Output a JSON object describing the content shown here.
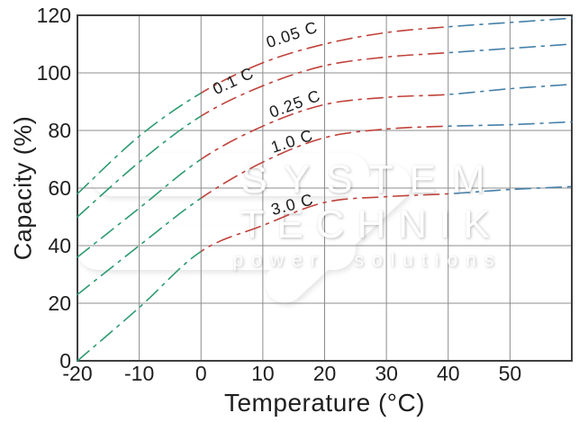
{
  "watermark": {
    "brand_line1": "SYSTEM",
    "brand_line2": "TECHNIK",
    "tagline": "power solutions"
  },
  "chart_data": {
    "type": "line",
    "title": "",
    "xlabel": "Temperature (°C)",
    "ylabel": "Capacity (%)",
    "xlim": [
      -20,
      60
    ],
    "ylim": [
      0,
      120
    ],
    "xticks": [
      -20,
      -10,
      0,
      10,
      20,
      30,
      40,
      50
    ],
    "yticks": [
      0,
      20,
      40,
      60,
      80,
      100,
      120
    ],
    "grid": true,
    "line_style": "dash-dot",
    "legend_position": "inline-curve-labels",
    "grid_color": "#8c8c8c",
    "border_color": "#3f3f3f",
    "text_color": "#1f1f1f",
    "color_bands": [
      {
        "name": "cold-segment",
        "t_min": -20,
        "t_max": 0,
        "color": "#2d9b6f"
      },
      {
        "name": "mid-segment",
        "t_min": 0,
        "t_max": 40,
        "color": "#c0413a"
      },
      {
        "name": "warm-segment",
        "t_min": 40,
        "t_max": 60,
        "color": "#4580a8"
      }
    ],
    "x": [
      -20,
      -10,
      0,
      10,
      20,
      30,
      40,
      50,
      60
    ],
    "series": [
      {
        "name": "0.05 C",
        "label": {
          "text": "0.05 C",
          "t": 15,
          "c": 111.5,
          "angle": -18
        },
        "values": [
          58,
          78,
          93,
          103.5,
          110,
          114,
          116,
          117.5,
          119
        ]
      },
      {
        "name": "0.1 C",
        "label": {
          "text": "0.1 C",
          "t": 5.6,
          "c": 95.5,
          "angle": -25
        },
        "values": [
          50,
          69,
          85,
          95.5,
          102.5,
          105.5,
          107,
          108.5,
          110
        ]
      },
      {
        "name": "0.25 C",
        "label": {
          "text": "0.25 C",
          "t": 15.5,
          "c": 87.5,
          "angle": -20
        },
        "values": [
          36,
          53,
          70,
          81.5,
          89,
          91.5,
          92.5,
          94.5,
          96
        ]
      },
      {
        "name": "1.0 C",
        "label": {
          "text": "1.0 C",
          "t": 15,
          "c": 74.5,
          "angle": -18
        },
        "values": [
          23,
          40,
          56.5,
          69,
          77.5,
          80.5,
          81.5,
          82,
          83
        ]
      },
      {
        "name": "3.0 C",
        "label": {
          "text": "3.0 C",
          "t": 15,
          "c": 52.5,
          "angle": -15
        },
        "values": [
          0,
          18.5,
          38,
          47,
          55,
          57,
          58,
          59.5,
          60.5
        ]
      }
    ]
  }
}
